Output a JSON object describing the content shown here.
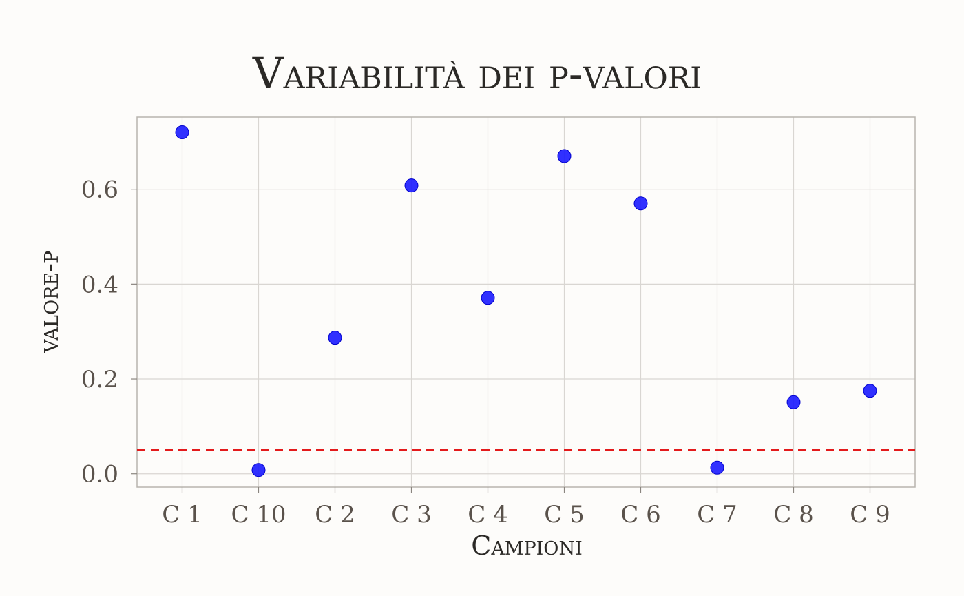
{
  "chart_data": {
    "type": "scatter",
    "title": "Variabilità dei p-valori",
    "xlabel": "Campioni",
    "ylabel": "valore-p",
    "categories": [
      "C 1",
      "C 10",
      "C 2",
      "C 3",
      "C 4",
      "C 5",
      "C 6",
      "C 7",
      "C 8",
      "C 9"
    ],
    "values": [
      0.72,
      0.008,
      0.287,
      0.608,
      0.371,
      0.67,
      0.57,
      0.013,
      0.151,
      0.175
    ],
    "ylim": [
      -0.028,
      0.752
    ],
    "yticks": [
      0.0,
      0.2,
      0.4,
      0.6
    ],
    "ytick_labels": [
      "0.0",
      "0.2",
      "0.4",
      "0.6"
    ],
    "reference_line": {
      "y": 0.05,
      "style": "dashed",
      "color": "#e31a1c"
    },
    "point_color": "#1a1aff",
    "grid": true,
    "legend": "none"
  }
}
